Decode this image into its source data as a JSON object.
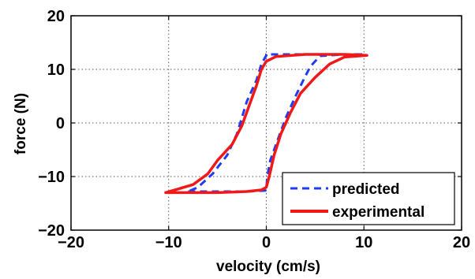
{
  "chart_data": {
    "type": "line",
    "title": "",
    "xlabel": "velocity (cm/s)",
    "ylabel": "force (N)",
    "xlim": [
      -20,
      20
    ],
    "ylim": [
      -20,
      20
    ],
    "xticks": [
      "−20",
      "−10",
      "0",
      "10",
      "20"
    ],
    "yticks": [
      "20",
      "10",
      "0",
      "−10",
      "−20"
    ],
    "xtick_values": [
      -20,
      -10,
      0,
      10,
      20
    ],
    "ytick_values": [
      20,
      10,
      0,
      -10,
      -20
    ],
    "grid": true,
    "legend_position": "bottom-right",
    "series": [
      {
        "name": "predicted",
        "style": "dashed",
        "color": "#1f3cf0",
        "points": [
          [
            -8,
            -12.8
          ],
          [
            -5,
            -12.8
          ],
          [
            -2,
            -12.8
          ],
          [
            0,
            -12.6
          ],
          [
            0.1,
            -10
          ],
          [
            0.4,
            -7
          ],
          [
            1,
            -4
          ],
          [
            2,
            1
          ],
          [
            3,
            5
          ],
          [
            3.8,
            8
          ],
          [
            4.5,
            10.5
          ],
          [
            5.5,
            12.5
          ],
          [
            8,
            12.8
          ],
          [
            10,
            12.8
          ],
          [
            8,
            12.8
          ],
          [
            4,
            12.8
          ],
          [
            0,
            12.8
          ],
          [
            0.0,
            12.6
          ],
          [
            -0.5,
            11
          ],
          [
            -1,
            8
          ],
          [
            -2,
            4
          ],
          [
            -3,
            -2
          ],
          [
            -4,
            -6
          ],
          [
            -5.5,
            -9.5
          ],
          [
            -7,
            -12
          ],
          [
            -8,
            -12.8
          ]
        ]
      },
      {
        "name": "experimental",
        "style": "solid",
        "color": "#f01818",
        "points": [
          [
            -10.3,
            -13
          ],
          [
            -8,
            -13
          ],
          [
            -5,
            -13
          ],
          [
            -2,
            -12.8
          ],
          [
            -0.5,
            -12.5
          ],
          [
            0,
            -12
          ],
          [
            0.3,
            -10
          ],
          [
            0.8,
            -6
          ],
          [
            1.5,
            -2
          ],
          [
            2.5,
            2
          ],
          [
            3.5,
            5.5
          ],
          [
            5,
            8.5
          ],
          [
            6.5,
            11
          ],
          [
            8,
            12.3
          ],
          [
            10.3,
            12.6
          ],
          [
            8,
            12.8
          ],
          [
            4,
            12.8
          ],
          [
            1,
            12.4
          ],
          [
            0,
            11.5
          ],
          [
            -0.5,
            10
          ],
          [
            -1,
            7
          ],
          [
            -1.8,
            3
          ],
          [
            -2.5,
            -0.5
          ],
          [
            -3.5,
            -4
          ],
          [
            -5,
            -7
          ],
          [
            -6,
            -9.5
          ],
          [
            -7.5,
            -11.5
          ],
          [
            -10.3,
            -13
          ]
        ]
      }
    ]
  },
  "legend": {
    "items": [
      {
        "label": "predicted",
        "color": "#1f3cf0",
        "style": "dashed"
      },
      {
        "label": "experimental",
        "color": "#f01818",
        "style": "solid"
      }
    ]
  }
}
